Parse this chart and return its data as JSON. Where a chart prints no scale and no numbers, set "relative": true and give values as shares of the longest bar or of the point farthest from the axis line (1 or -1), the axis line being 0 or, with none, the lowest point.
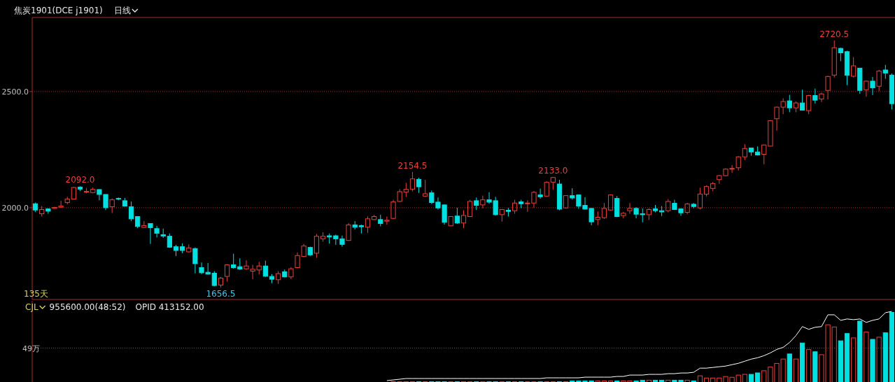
{
  "chart_data": [
    {
      "type": "candlestick",
      "title": "焦炭1901(DCE j1901)",
      "subtitle": "日线",
      "grid": "y",
      "tick_labels": "y",
      "ylim": [
        1605,
        2819
      ],
      "yticks": [
        {
          "value": 2500,
          "label": "2500.0"
        },
        {
          "value": 2000,
          "label": "2000.0"
        }
      ],
      "categories": [
        null,
        null,
        null,
        null,
        null,
        null,
        null,
        null,
        null,
        null,
        null,
        null,
        null,
        null,
        null,
        null,
        null,
        null,
        null,
        null,
        null,
        null,
        null,
        null,
        null,
        null,
        null,
        null,
        null,
        null,
        null,
        null,
        null,
        null,
        null,
        null,
        null,
        null,
        null,
        null,
        null,
        null,
        null,
        null,
        null,
        null,
        null,
        null,
        null,
        null,
        null,
        null,
        null,
        null,
        null,
        null,
        null,
        null,
        null,
        null,
        null,
        null,
        null,
        null,
        null,
        null,
        null,
        null,
        null,
        null,
        null,
        null,
        null,
        null,
        null,
        null,
        null,
        null,
        null,
        null,
        null,
        null,
        null,
        null,
        null,
        null,
        null,
        null,
        null,
        null,
        null,
        null,
        null,
        null,
        null,
        null,
        null,
        null,
        null,
        null,
        null,
        null,
        null,
        null,
        null,
        null,
        null,
        null,
        null,
        null,
        null,
        null,
        null,
        null,
        null,
        null,
        null,
        null,
        null,
        null,
        null,
        null,
        null,
        null,
        null,
        null,
        null,
        null,
        null,
        null,
        null,
        null,
        null,
        null,
        null
      ],
      "ohlc": [
        [
          2017,
          2022,
          1982,
          1990
        ],
        [
          1974,
          2007,
          1962,
          1992
        ],
        [
          1995,
          1997,
          1974,
          1985
        ],
        [
          1997,
          2004,
          1995,
          2001
        ],
        [
          2002,
          2030,
          1999,
          2007
        ],
        [
          2022,
          2047,
          2014,
          2037
        ],
        [
          2037,
          2090,
          2035,
          2087
        ],
        [
          2089,
          2092,
          2072,
          2080
        ],
        [
          2067,
          2085,
          2062,
          2070
        ],
        [
          2065,
          2087,
          2062,
          2079
        ],
        [
          2078,
          2080,
          2032,
          2057
        ],
        [
          2057,
          2057,
          1990,
          2000
        ],
        [
          2004,
          2040,
          1977,
          2034
        ],
        [
          2040,
          2044,
          2032,
          2037
        ],
        [
          2030,
          2042,
          2005,
          2007
        ],
        [
          2004,
          2027,
          1942,
          1952
        ],
        [
          1962,
          1962,
          1912,
          1919
        ],
        [
          1915,
          1942,
          1912,
          1923
        ],
        [
          1932,
          1932,
          1844,
          1914
        ],
        [
          1910,
          1922,
          1872,
          1890
        ],
        [
          1884,
          1910,
          1870,
          1878
        ],
        [
          1877,
          1889,
          1827,
          1830
        ],
        [
          1832,
          1840,
          1792,
          1816
        ],
        [
          1832,
          1847,
          1804,
          1816
        ],
        [
          1810,
          1842,
          1807,
          1827
        ],
        [
          1824,
          1829,
          1717,
          1759
        ],
        [
          1742,
          1764,
          1714,
          1720
        ],
        [
          1722,
          1762,
          1712,
          1714
        ],
        [
          1718,
          1727,
          1662,
          1665
        ],
        [
          1667,
          1702,
          1656.5,
          1697
        ],
        [
          1704,
          1757,
          1682,
          1754
        ],
        [
          1754,
          1802,
          1737,
          1742
        ],
        [
          1746,
          1782,
          1732,
          1736
        ],
        [
          1737,
          1774,
          1732,
          1749
        ],
        [
          1727,
          1754,
          1692,
          1735
        ],
        [
          1732,
          1767,
          1712,
          1749
        ],
        [
          1749,
          1772,
          1702,
          1705
        ],
        [
          1704,
          1714,
          1675,
          1692
        ],
        [
          1690,
          1727,
          1672,
          1716
        ],
        [
          1724,
          1734,
          1700,
          1702
        ],
        [
          1702,
          1744,
          1692,
          1737
        ],
        [
          1742,
          1807,
          1740,
          1794
        ],
        [
          1790,
          1844,
          1787,
          1835
        ],
        [
          1829,
          1832,
          1792,
          1797
        ],
        [
          1804,
          1887,
          1784,
          1877
        ],
        [
          1866,
          1894,
          1854,
          1877
        ],
        [
          1879,
          1889,
          1845,
          1874
        ],
        [
          1879,
          1884,
          1840,
          1866
        ],
        [
          1866,
          1880,
          1832,
          1842
        ],
        [
          1859,
          1934,
          1857,
          1926
        ],
        [
          1926,
          1942,
          1906,
          1916
        ],
        [
          1923,
          1927,
          1889,
          1918
        ],
        [
          1916,
          1962,
          1892,
          1952
        ],
        [
          1949,
          1969,
          1947,
          1962
        ],
        [
          1949,
          1970,
          1920,
          1932
        ],
        [
          1942,
          1962,
          1927,
          1946
        ],
        [
          1954,
          2034,
          1950,
          2025
        ],
        [
          2027,
          2080,
          2025,
          2069
        ],
        [
          2067,
          2107,
          2047,
          2079
        ],
        [
          2080,
          2154.5,
          2070,
          2124
        ],
        [
          2122,
          2129,
          2064,
          2090
        ],
        [
          2050,
          2120,
          2046,
          2060
        ],
        [
          2064,
          2074,
          2016,
          2022
        ],
        [
          2024,
          2044,
          1992,
          1999
        ],
        [
          2012,
          2014,
          1927,
          1937
        ],
        [
          1922,
          1964,
          1920,
          1962
        ],
        [
          1964,
          2000,
          1930,
          1934
        ],
        [
          1934,
          1989,
          1912,
          1967
        ],
        [
          1962,
          2034,
          1960,
          2027
        ],
        [
          2030,
          2044,
          1990,
          2010
        ],
        [
          2012,
          2052,
          1997,
          2034
        ],
        [
          2034,
          2067,
          2017,
          2024
        ],
        [
          2030,
          2047,
          1966,
          1970
        ],
        [
          1970,
          1994,
          1940,
          1992
        ],
        [
          1989,
          1999,
          1962,
          1984
        ],
        [
          1987,
          2034,
          1974,
          2020
        ],
        [
          2025,
          2034,
          1998,
          2017
        ],
        [
          2017,
          2032,
          1982,
          2020
        ],
        [
          2020,
          2072,
          2000,
          2066
        ],
        [
          2055,
          2082,
          2039,
          2047
        ],
        [
          2050,
          2114,
          2047,
          2109
        ],
        [
          2110,
          2133,
          2077,
          2130
        ],
        [
          2102,
          2120,
          1989,
          1994
        ],
        [
          1999,
          2054,
          1997,
          2052
        ],
        [
          2052,
          2084,
          2035,
          2042
        ],
        [
          2055,
          2057,
          1995,
          2007
        ],
        [
          2010,
          2045,
          1992,
          1994
        ],
        [
          1997,
          1997,
          1924,
          1939
        ],
        [
          1949,
          1984,
          1924,
          1959
        ],
        [
          1957,
          2020,
          1952,
          1997
        ],
        [
          1990,
          2057,
          1987,
          2055
        ],
        [
          2040,
          2050,
          1959,
          1962
        ],
        [
          1966,
          1982,
          1954,
          1976
        ],
        [
          1987,
          2020,
          1974,
          1997
        ],
        [
          1997,
          2002,
          1954,
          1972
        ],
        [
          1974,
          1997,
          1937,
          1970
        ],
        [
          1970,
          1997,
          1947,
          1992
        ],
        [
          1995,
          2012,
          1980,
          1987
        ],
        [
          1987,
          2007,
          1964,
          1982
        ],
        [
          1987,
          2037,
          1980,
          2027
        ],
        [
          2019,
          2034,
          1990,
          1992
        ],
        [
          1995,
          1997,
          1965,
          1978
        ],
        [
          1980,
          2021,
          1972,
          2016
        ],
        [
          2015,
          2020,
          1997,
          2005
        ],
        [
          1999,
          2086,
          1993,
          2059
        ],
        [
          2058,
          2096,
          2049,
          2091
        ],
        [
          2083,
          2111,
          2071,
          2104
        ],
        [
          2121,
          2141,
          2103,
          2138
        ],
        [
          2138,
          2170,
          2135,
          2166
        ],
        [
          2166,
          2184,
          2150,
          2169
        ],
        [
          2172,
          2222,
          2160,
          2219
        ],
        [
          2219,
          2274,
          2205,
          2255
        ],
        [
          2257,
          2259,
          2224,
          2240
        ],
        [
          2240,
          2264,
          2225,
          2227
        ],
        [
          2230,
          2272,
          2187,
          2270
        ],
        [
          2265,
          2377,
          2264,
          2375
        ],
        [
          2383,
          2435,
          2332,
          2433
        ],
        [
          2433,
          2471,
          2403,
          2457
        ],
        [
          2460,
          2486,
          2411,
          2430
        ],
        [
          2430,
          2458,
          2411,
          2451
        ],
        [
          2451,
          2508,
          2420,
          2420
        ],
        [
          2418,
          2486,
          2403,
          2483
        ],
        [
          2483,
          2513,
          2448,
          2463
        ],
        [
          2468,
          2495,
          2455,
          2490
        ],
        [
          2505,
          2568,
          2466,
          2565
        ],
        [
          2571,
          2720.5,
          2561,
          2689
        ],
        [
          2686,
          2689,
          2631,
          2667
        ],
        [
          2672,
          2676,
          2528,
          2570
        ],
        [
          2566,
          2648,
          2561,
          2611
        ],
        [
          2601,
          2601,
          2490,
          2505
        ],
        [
          2508,
          2548,
          2478,
          2545
        ],
        [
          2545,
          2563,
          2485,
          2516
        ],
        [
          2523,
          2593,
          2501,
          2588
        ],
        [
          2593,
          2615,
          2555,
          2580
        ],
        [
          2571,
          2578,
          2423,
          2448
        ]
      ],
      "colors": [
        "#00e0e0",
        "#e8413c",
        "#00e0e0",
        "#e8413c",
        "#e8413c",
        "#e8413c",
        "#e8413c",
        "#00e0e0",
        "#e8413c",
        "#e8413c",
        "#00e0e0",
        "#00e0e0",
        "#e8413c",
        "#00e0e0",
        "#00e0e0",
        "#00e0e0",
        "#00e0e0",
        "#e8413c",
        "#00e0e0",
        "#00e0e0",
        "#00e0e0",
        "#00e0e0",
        "#00e0e0",
        "#00e0e0",
        "#e8413c",
        "#00e0e0",
        "#00e0e0",
        "#00e0e0",
        "#00e0e0",
        "#e8413c",
        "#e8413c",
        "#00e0e0",
        "#00e0e0",
        "#e8413c",
        "#e8413c",
        "#e8413c",
        "#00e0e0",
        "#00e0e0",
        "#e8413c",
        "#00e0e0",
        "#e8413c",
        "#e8413c",
        "#e8413c",
        "#00e0e0",
        "#e8413c",
        "#e8413c",
        "#00e0e0",
        "#00e0e0",
        "#00e0e0",
        "#e8413c",
        "#00e0e0",
        "#00e0e0",
        "#e8413c",
        "#e8413c",
        "#00e0e0",
        "#e8413c",
        "#e8413c",
        "#e8413c",
        "#e8413c",
        "#e8413c",
        "#00e0e0",
        "#e8413c",
        "#00e0e0",
        "#00e0e0",
        "#00e0e0",
        "#e8413c",
        "#00e0e0",
        "#e8413c",
        "#e8413c",
        "#00e0e0",
        "#e8413c",
        "#00e0e0",
        "#00e0e0",
        "#e8413c",
        "#00e0e0",
        "#e8413c",
        "#00e0e0",
        "#e8413c",
        "#e8413c",
        "#00e0e0",
        "#e8413c",
        "#e8413c",
        "#00e0e0",
        "#e8413c",
        "#00e0e0",
        "#00e0e0",
        "#00e0e0",
        "#00e0e0",
        "#e8413c",
        "#e8413c",
        "#e8413c",
        "#00e0e0",
        "#e8413c",
        "#e8413c",
        "#00e0e0",
        "#00e0e0",
        "#e8413c",
        "#00e0e0",
        "#00e0e0",
        "#e8413c",
        "#00e0e0",
        "#00e0e0",
        "#e8413c",
        "#00e0e0",
        "#e8413c",
        "#e8413c",
        "#e8413c",
        "#e8413c",
        "#e8413c",
        "#e8413c",
        "#e8413c",
        "#e8413c",
        "#00e0e0",
        "#00e0e0",
        "#e8413c",
        "#e8413c",
        "#e8413c",
        "#e8413c",
        "#00e0e0",
        "#e8413c",
        "#00e0e0",
        "#e8413c",
        "#00e0e0",
        "#e8413c",
        "#e8413c",
        "#e8413c",
        "#00e0e0",
        "#00e0e0",
        "#e8413c",
        "#00e0e0",
        "#e8413c",
        "#00e0e0",
        "#e8413c",
        "#00e0e0",
        "#00e0e0"
      ],
      "annotations": [
        "2092.0",
        {
          "text": "1656.5",
          "y": 1656.5
        },
        "2154.5",
        "2133.0",
        "2720.5",
        "135天"
      ]
    },
    {
      "type": "bar",
      "relative": true,
      "ref_lines": [
        {
          "axis": "y",
          "value": 0.51,
          "label": "49万",
          "color": "#b02a2a",
          "line_style": "dotted"
        }
      ],
      "categories": [
        null,
        null,
        null,
        null,
        null,
        null,
        null,
        null,
        null,
        null,
        null,
        null,
        null,
        null,
        null,
        null,
        null,
        null,
        null,
        null,
        null,
        null,
        null,
        null,
        null,
        null,
        null,
        null,
        null,
        null,
        null,
        null,
        null,
        null,
        null,
        null,
        null,
        null,
        null,
        null,
        null,
        null,
        null,
        null,
        null,
        null,
        null,
        null,
        null,
        null,
        null,
        null,
        null,
        null,
        null,
        null,
        null,
        null,
        null,
        null,
        null,
        null,
        null,
        null,
        null,
        null,
        null,
        null,
        null,
        null,
        null,
        null,
        null,
        null,
        null,
        null,
        null,
        null,
        null,
        null,
        null,
        null,
        null,
        null,
        null,
        null,
        null,
        null,
        null,
        null,
        null,
        null,
        null,
        null,
        null,
        null,
        null,
        null,
        null,
        null,
        null,
        null,
        null,
        null,
        null,
        null,
        null,
        null,
        null,
        null,
        null,
        null,
        null,
        null,
        null,
        null,
        null,
        null,
        null,
        null,
        null,
        null,
        null,
        null,
        null,
        null,
        null,
        null,
        null,
        null,
        null,
        null,
        null,
        null,
        null
      ],
      "annotations": [
        "CJL",
        "955600.00(48:52)"
      ],
      "series": [
        {
          "type": "bar",
          "colors": [
            null,
            null,
            null,
            null,
            null,
            null,
            null,
            null,
            null,
            null,
            null,
            null,
            null,
            null,
            null,
            null,
            null,
            null,
            null,
            null,
            null,
            null,
            null,
            null,
            null,
            null,
            null,
            null,
            null,
            null,
            null,
            null,
            null,
            null,
            null,
            null,
            null,
            null,
            null,
            null,
            null,
            null,
            null,
            null,
            null,
            null,
            null,
            null,
            null,
            null,
            null,
            null,
            null,
            null,
            null,
            null,
            "#e8413c",
            "#e8413c",
            "#e8413c",
            "#e8413c",
            "#00e0e0",
            "#e8413c",
            "#00e0e0",
            "#00e0e0",
            "#00e0e0",
            "#e8413c",
            "#00e0e0",
            "#e8413c",
            "#e8413c",
            "#00e0e0",
            "#e8413c",
            "#00e0e0",
            "#00e0e0",
            "#e8413c",
            "#00e0e0",
            "#e8413c",
            "#00e0e0",
            "#e8413c",
            "#e8413c",
            "#00e0e0",
            "#e8413c",
            "#e8413c",
            "#00e0e0",
            "#e8413c",
            "#00e0e0",
            "#00e0e0",
            "#00e0e0",
            "#00e0e0",
            "#e8413c",
            "#e8413c",
            "#e8413c",
            "#00e0e0",
            "#e8413c",
            "#e8413c",
            "#00e0e0",
            "#00e0e0",
            "#e8413c",
            "#00e0e0",
            "#00e0e0",
            "#e8413c",
            "#00e0e0",
            "#00e0e0",
            "#e8413c",
            "#00e0e0",
            "#e8413c",
            "#e8413c",
            "#e8413c",
            "#e8413c",
            "#e8413c",
            "#e8413c",
            "#e8413c",
            "#e8413c",
            "#00e0e0",
            "#00e0e0",
            "#e8413c",
            "#e8413c",
            "#e8413c",
            "#e8413c",
            "#00e0e0",
            "#e8413c",
            "#00e0e0",
            "#e8413c",
            "#00e0e0",
            "#e8413c",
            "#e8413c",
            "#e8413c",
            "#00e0e0",
            "#00e0e0",
            "#e8413c",
            "#00e0e0",
            "#e8413c",
            "#00e0e0",
            "#e8413c",
            "#00e0e0",
            "#00e0e0"
          ],
          "values": [
            null,
            null,
            null,
            null,
            null,
            null,
            null,
            null,
            null,
            null,
            null,
            null,
            null,
            null,
            null,
            null,
            null,
            null,
            null,
            null,
            null,
            null,
            null,
            null,
            null,
            null,
            null,
            null,
            null,
            null,
            null,
            null,
            null,
            null,
            null,
            null,
            null,
            null,
            null,
            null,
            null,
            null,
            null,
            null,
            null,
            null,
            null,
            null,
            null,
            null,
            null,
            null,
            null,
            null,
            null,
            null,
            0.05,
            0.05,
            0.05,
            0.05,
            0.05,
            0.05,
            0.05,
            0.05,
            0.05,
            0.05,
            0.05,
            0.05,
            0.05,
            0.05,
            0.05,
            0.05,
            0.05,
            0.05,
            0.05,
            0.05,
            0.05,
            0.05,
            0.05,
            0.05,
            0.05,
            0.05,
            0.05,
            0.05,
            0.06,
            0.06,
            0.06,
            0.06,
            0.06,
            0.06,
            0.06,
            0.06,
            0.06,
            0.06,
            0.06,
            0.07,
            0.07,
            0.07,
            0.07,
            0.07,
            0.07,
            0.07,
            0.07,
            0.06,
            0.13,
            0.1,
            0.1,
            0.1,
            0.12,
            0.11,
            0.14,
            0.15,
            0.15,
            0.17,
            0.2,
            0.25,
            0.3,
            0.36,
            0.43,
            0.36,
            0.58,
            0.49,
            0.46,
            0.42,
            0.83,
            0.8,
            0.61,
            0.71,
            0.65,
            0.88,
            0.73,
            0.63,
            0.66,
            0.72,
            1
          ]
        }
      ]
    },
    {
      "type": "line",
      "relative": true,
      "annotations": [
        "OPID 413152.00"
      ],
      "categories": [
        null,
        null,
        null,
        null,
        null,
        null,
        null,
        null,
        null,
        null,
        null,
        null,
        null,
        null,
        null,
        null,
        null,
        null,
        null,
        null,
        null,
        null,
        null,
        null,
        null,
        null,
        null,
        null,
        null,
        null,
        null,
        null,
        null,
        null,
        null,
        null,
        null,
        null,
        null,
        null,
        null,
        null,
        null,
        null,
        null,
        null,
        null,
        null,
        null,
        null,
        null,
        null,
        null,
        null,
        null,
        null,
        null,
        null,
        null,
        null,
        null,
        null,
        null,
        null,
        null,
        null,
        null,
        null,
        null,
        null,
        null,
        null,
        null,
        null,
        null,
        null,
        null,
        null,
        null,
        null,
        null,
        null,
        null,
        null,
        null,
        null,
        null,
        null,
        null,
        null,
        null,
        null,
        null,
        null,
        null,
        null,
        null,
        null,
        null,
        null,
        null,
        null,
        null,
        null,
        null,
        null,
        null,
        null,
        null,
        null,
        null,
        null,
        null,
        null,
        null,
        null,
        null,
        null,
        null,
        null,
        null,
        null,
        null,
        null,
        null,
        null,
        null,
        null,
        null,
        null,
        null,
        null,
        null,
        null,
        null
      ],
      "series": [
        {
          "color": "#ffffff",
          "values": [
            null,
            null,
            null,
            null,
            null,
            null,
            null,
            null,
            null,
            null,
            null,
            null,
            null,
            null,
            null,
            null,
            null,
            null,
            null,
            null,
            null,
            null,
            null,
            null,
            null,
            null,
            null,
            null,
            null,
            null,
            null,
            null,
            null,
            null,
            null,
            null,
            null,
            null,
            null,
            null,
            null,
            null,
            null,
            null,
            null,
            null,
            null,
            null,
            null,
            null,
            null,
            null,
            null,
            null,
            null,
            0,
            0.01,
            0.02,
            0.03,
            0.03,
            0.03,
            0.03,
            0.03,
            0.03,
            0.03,
            0.03,
            0.03,
            0.03,
            0.03,
            0.03,
            0.03,
            0.03,
            0.03,
            0.03,
            0.03,
            0.03,
            0.03,
            0.03,
            0.03,
            0.03,
            0.04,
            0.04,
            0.04,
            0.04,
            0.04,
            0.04,
            0.05,
            0.05,
            0.05,
            0.05,
            0.05,
            0.06,
            0.06,
            0.08,
            0.08,
            0.08,
            0.09,
            0.09,
            0.09,
            0.1,
            0.1,
            0.11,
            0.11,
            0.12,
            0.18,
            0.18,
            0.19,
            0.2,
            0.21,
            0.23,
            0.25,
            0.28,
            0.31,
            0.33,
            0.36,
            0.4,
            0.45,
            0.48,
            0.55,
            0.65,
            0.78,
            0.74,
            0.77,
            0.78,
            0.95,
            0.95,
            0.87,
            0.89,
            0.88,
            0.89,
            0.84,
            0.87,
            0.89,
            0.98,
            1
          ]
        }
      ]
    }
  ]
}
